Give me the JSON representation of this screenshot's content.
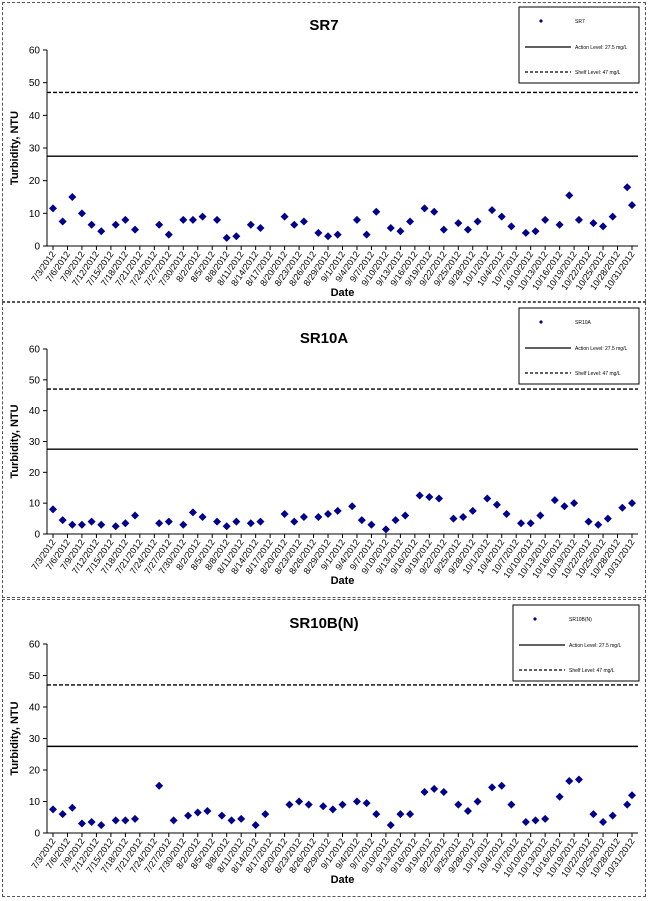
{
  "colors": {
    "marker": "#00008B",
    "line": "#000000",
    "grid_border": "#808080"
  },
  "legend_labels": {
    "action": "Action Level: 27.5 mg/L",
    "shelf": "Shelf Level: 47 mg/L"
  },
  "chart_data": [
    {
      "type": "scatter",
      "title": "SR7",
      "xlabel": "Date",
      "ylabel": "Turbidity, NTU",
      "ylim": [
        0,
        60
      ],
      "yticks": [
        0,
        10,
        20,
        30,
        40,
        50,
        60
      ],
      "xlim": [
        "7/3/2012",
        "10/31/2012"
      ],
      "xticks": [
        "7/3/2012",
        "7/6/2012",
        "7/9/2012",
        "7/12/2012",
        "7/15/2012",
        "7/18/2012",
        "7/21/2012",
        "7/24/2012",
        "7/27/2012",
        "7/30/2012",
        "8/2/2012",
        "8/5/2012",
        "8/8/2012",
        "8/11/2012",
        "8/14/2012",
        "8/17/2012",
        "8/20/2012",
        "8/23/2012",
        "8/26/2012",
        "8/29/2012",
        "9/1/2012",
        "9/4/2012",
        "9/7/2012",
        "9/10/2012",
        "9/13/2012",
        "9/16/2012",
        "9/19/2012",
        "9/22/2012",
        "9/25/2012",
        "9/28/2012",
        "10/1/2012",
        "10/4/2012",
        "10/7/2012",
        "10/10/2012",
        "10/13/2012",
        "10/16/2012",
        "10/19/2012",
        "10/22/2012",
        "10/25/2012",
        "10/28/2012",
        "10/31/2012"
      ],
      "legend": {
        "position": "top-right",
        "series_label": "SR7"
      },
      "reference_lines": [
        {
          "y": 27.5,
          "style": "solid"
        },
        {
          "y": 47,
          "style": "dashed"
        }
      ],
      "series": [
        {
          "name": "SR7",
          "points": [
            [
              "7/3/2012",
              11.5
            ],
            [
              "7/5/2012",
              7.5
            ],
            [
              "7/7/2012",
              15
            ],
            [
              "7/9/2012",
              10
            ],
            [
              "7/11/2012",
              6.5
            ],
            [
              "7/13/2012",
              4.5
            ],
            [
              "7/16/2012",
              6.5
            ],
            [
              "7/18/2012",
              8
            ],
            [
              "7/20/2012",
              5
            ],
            [
              "7/25/2012",
              6.5
            ],
            [
              "7/27/2012",
              3.5
            ],
            [
              "7/30/2012",
              8
            ],
            [
              "8/1/2012",
              8
            ],
            [
              "8/3/2012",
              9
            ],
            [
              "8/6/2012",
              8
            ],
            [
              "8/8/2012",
              2.5
            ],
            [
              "8/10/2012",
              3
            ],
            [
              "8/13/2012",
              6.5
            ],
            [
              "8/15/2012",
              5.5
            ],
            [
              "8/20/2012",
              9
            ],
            [
              "8/22/2012",
              6.5
            ],
            [
              "8/24/2012",
              7.5
            ],
            [
              "8/27/2012",
              4
            ],
            [
              "8/29/2012",
              3
            ],
            [
              "8/31/2012",
              3.5
            ],
            [
              "9/4/2012",
              8
            ],
            [
              "9/6/2012",
              3.5
            ],
            [
              "9/8/2012",
              10.5
            ],
            [
              "9/11/2012",
              5.5
            ],
            [
              "9/13/2012",
              4.5
            ],
            [
              "9/15/2012",
              7.5
            ],
            [
              "9/18/2012",
              11.5
            ],
            [
              "9/20/2012",
              10.5
            ],
            [
              "9/22/2012",
              5
            ],
            [
              "9/25/2012",
              7
            ],
            [
              "9/27/2012",
              5
            ],
            [
              "9/29/2012",
              7.5
            ],
            [
              "10/2/2012",
              11
            ],
            [
              "10/4/2012",
              9
            ],
            [
              "10/6/2012",
              6
            ],
            [
              "10/9/2012",
              4
            ],
            [
              "10/11/2012",
              4.5
            ],
            [
              "10/13/2012",
              8
            ],
            [
              "10/16/2012",
              6.5
            ],
            [
              "10/18/2012",
              15.5
            ],
            [
              "10/20/2012",
              8
            ],
            [
              "10/23/2012",
              7
            ],
            [
              "10/25/2012",
              6
            ],
            [
              "10/27/2012",
              9
            ],
            [
              "10/30/2012",
              18
            ],
            [
              "10/31/2012",
              12.5
            ]
          ]
        }
      ]
    },
    {
      "type": "scatter",
      "title": "SR10A",
      "xlabel": "Date",
      "ylabel": "Turbidity, NTU",
      "ylim": [
        0,
        60
      ],
      "yticks": [
        0,
        10,
        20,
        30,
        40,
        50,
        60
      ],
      "xlim": [
        "7/3/2012",
        "10/31/2012"
      ],
      "xticks": [
        "7/3/2012",
        "7/6/2012",
        "7/9/2012",
        "7/12/2012",
        "7/15/2012",
        "7/18/2012",
        "7/21/2012",
        "7/24/2012",
        "7/27/2012",
        "7/30/2012",
        "8/2/2012",
        "8/5/2012",
        "8/8/2012",
        "8/11/2012",
        "8/14/2012",
        "8/17/2012",
        "8/20/2012",
        "8/23/2012",
        "8/26/2012",
        "8/29/2012",
        "9/1/2012",
        "9/4/2012",
        "9/7/2012",
        "9/10/2012",
        "9/13/2012",
        "9/16/2012",
        "9/19/2012",
        "9/22/2012",
        "9/25/2012",
        "9/28/2012",
        "10/1/2012",
        "10/4/2012",
        "10/7/2012",
        "10/10/2012",
        "10/13/2012",
        "10/16/2012",
        "10/19/2012",
        "10/22/2012",
        "10/25/2012",
        "10/28/2012",
        "10/31/2012"
      ],
      "legend": {
        "position": "top-right",
        "series_label": "SR10A"
      },
      "reference_lines": [
        {
          "y": 27.5,
          "style": "solid"
        },
        {
          "y": 47,
          "style": "dashed"
        }
      ],
      "series": [
        {
          "name": "SR10A",
          "points": [
            [
              "7/3/2012",
              8
            ],
            [
              "7/5/2012",
              4.5
            ],
            [
              "7/7/2012",
              3
            ],
            [
              "7/9/2012",
              3
            ],
            [
              "7/11/2012",
              4
            ],
            [
              "7/13/2012",
              3
            ],
            [
              "7/16/2012",
              2.5
            ],
            [
              "7/18/2012",
              3.5
            ],
            [
              "7/20/2012",
              6
            ],
            [
              "7/25/2012",
              3.5
            ],
            [
              "7/27/2012",
              4
            ],
            [
              "7/30/2012",
              3
            ],
            [
              "8/1/2012",
              7
            ],
            [
              "8/3/2012",
              5.5
            ],
            [
              "8/6/2012",
              4
            ],
            [
              "8/8/2012",
              2.5
            ],
            [
              "8/10/2012",
              4
            ],
            [
              "8/13/2012",
              3.5
            ],
            [
              "8/15/2012",
              4
            ],
            [
              "8/20/2012",
              6.5
            ],
            [
              "8/22/2012",
              4
            ],
            [
              "8/24/2012",
              5.5
            ],
            [
              "8/27/2012",
              5.5
            ],
            [
              "8/29/2012",
              6.5
            ],
            [
              "8/31/2012",
              7.5
            ],
            [
              "9/3/2012",
              9
            ],
            [
              "9/5/2012",
              4.5
            ],
            [
              "9/7/2012",
              3
            ],
            [
              "9/10/2012",
              1.5
            ],
            [
              "9/12/2012",
              4.5
            ],
            [
              "9/14/2012",
              6
            ],
            [
              "9/17/2012",
              12.5
            ],
            [
              "9/19/2012",
              12
            ],
            [
              "9/21/2012",
              11.5
            ],
            [
              "9/24/2012",
              5
            ],
            [
              "9/26/2012",
              5.5
            ],
            [
              "9/28/2012",
              7.5
            ],
            [
              "10/1/2012",
              11.5
            ],
            [
              "10/3/2012",
              9.5
            ],
            [
              "10/5/2012",
              6.5
            ],
            [
              "10/8/2012",
              3.5
            ],
            [
              "10/10/2012",
              3.5
            ],
            [
              "10/12/2012",
              6
            ],
            [
              "10/15/2012",
              11
            ],
            [
              "10/17/2012",
              9
            ],
            [
              "10/19/2012",
              10
            ],
            [
              "10/22/2012",
              4
            ],
            [
              "10/24/2012",
              3
            ],
            [
              "10/26/2012",
              5
            ],
            [
              "10/29/2012",
              8.5
            ],
            [
              "10/31/2012",
              10
            ]
          ]
        }
      ]
    },
    {
      "type": "scatter",
      "title": "SR10B(N)",
      "xlabel": "Date",
      "ylabel": "Turbidity, NTU",
      "ylim": [
        0,
        60
      ],
      "yticks": [
        0,
        10,
        20,
        30,
        40,
        50,
        60
      ],
      "xlim": [
        "7/3/2012",
        "10/31/2012"
      ],
      "xticks": [
        "7/3/2012",
        "7/6/2012",
        "7/9/2012",
        "7/12/2012",
        "7/15/2012",
        "7/18/2012",
        "7/21/2012",
        "7/24/2012",
        "7/27/2012",
        "7/30/2012",
        "8/2/2012",
        "8/5/2012",
        "8/8/2012",
        "8/11/2012",
        "8/14/2012",
        "8/17/2012",
        "8/20/2012",
        "8/23/2012",
        "8/26/2012",
        "8/29/2012",
        "9/1/2012",
        "9/4/2012",
        "9/7/2012",
        "9/10/2012",
        "9/13/2012",
        "9/16/2012",
        "9/19/2012",
        "9/22/2012",
        "9/25/2012",
        "9/28/2012",
        "10/1/2012",
        "10/4/2012",
        "10/7/2012",
        "10/10/2012",
        "10/13/2012",
        "10/16/2012",
        "10/19/2012",
        "10/22/2012",
        "10/25/2012",
        "10/28/2012",
        "10/31/2012"
      ],
      "legend": {
        "position": "top-right",
        "series_label": "SR10B(N)"
      },
      "reference_lines": [
        {
          "y": 27.5,
          "style": "solid"
        },
        {
          "y": 47,
          "style": "dashed"
        }
      ],
      "series": [
        {
          "name": "SR10B(N)",
          "points": [
            [
              "7/3/2012",
              7.5
            ],
            [
              "7/5/2012",
              6
            ],
            [
              "7/7/2012",
              8
            ],
            [
              "7/9/2012",
              3
            ],
            [
              "7/11/2012",
              3.5
            ],
            [
              "7/13/2012",
              2.5
            ],
            [
              "7/16/2012",
              4
            ],
            [
              "7/18/2012",
              4
            ],
            [
              "7/20/2012",
              4.5
            ],
            [
              "7/25/2012",
              15
            ],
            [
              "7/28/2012",
              4
            ],
            [
              "7/31/2012",
              5.5
            ],
            [
              "8/2/2012",
              6.5
            ],
            [
              "8/4/2012",
              7
            ],
            [
              "8/7/2012",
              5.5
            ],
            [
              "8/9/2012",
              4
            ],
            [
              "8/11/2012",
              4.5
            ],
            [
              "8/14/2012",
              2.5
            ],
            [
              "8/16/2012",
              6
            ],
            [
              "8/21/2012",
              9
            ],
            [
              "8/23/2012",
              10
            ],
            [
              "8/25/2012",
              9
            ],
            [
              "8/28/2012",
              8.5
            ],
            [
              "8/30/2012",
              7.5
            ],
            [
              "9/1/2012",
              9
            ],
            [
              "9/4/2012",
              10
            ],
            [
              "9/6/2012",
              9.5
            ],
            [
              "9/8/2012",
              6
            ],
            [
              "9/11/2012",
              2.5
            ],
            [
              "9/13/2012",
              6
            ],
            [
              "9/15/2012",
              6
            ],
            [
              "9/18/2012",
              13
            ],
            [
              "9/20/2012",
              14
            ],
            [
              "9/22/2012",
              13
            ],
            [
              "9/25/2012",
              9
            ],
            [
              "9/27/2012",
              7
            ],
            [
              "9/29/2012",
              10
            ],
            [
              "10/2/2012",
              14.5
            ],
            [
              "10/4/2012",
              15
            ],
            [
              "10/6/2012",
              9
            ],
            [
              "10/9/2012",
              3.5
            ],
            [
              "10/11/2012",
              4
            ],
            [
              "10/13/2012",
              4.5
            ],
            [
              "10/16/2012",
              11.5
            ],
            [
              "10/18/2012",
              16.5
            ],
            [
              "10/20/2012",
              17
            ],
            [
              "10/23/2012",
              6
            ],
            [
              "10/25/2012",
              3.5
            ],
            [
              "10/27/2012",
              5.5
            ],
            [
              "10/30/2012",
              9
            ],
            [
              "10/31/2012",
              12
            ]
          ]
        }
      ]
    }
  ]
}
